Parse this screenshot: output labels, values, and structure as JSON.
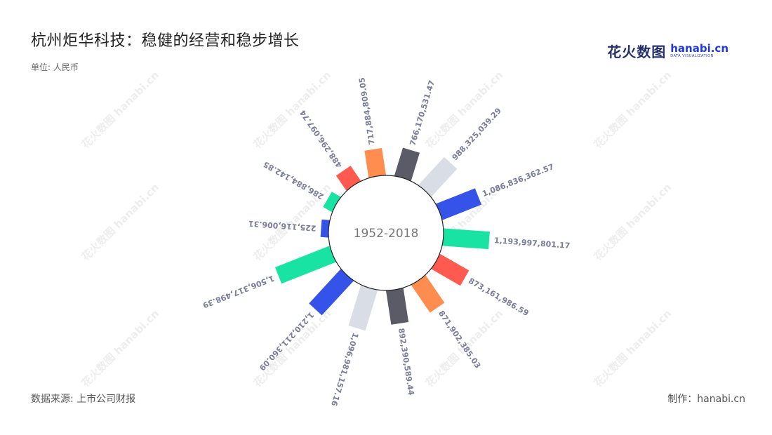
{
  "title": "杭州炬华科技：稳健的经营和稳步增长",
  "unit_label": "单位: 人民币",
  "source": "数据来源: 上市公司财报",
  "credit": "制作：hanabi.cn",
  "logo": {
    "cn": "花火数图",
    "en": "hanabi.cn",
    "sub": "DATA VISUALIZATION"
  },
  "watermark_text": "花火数图 hanabi.cn",
  "chart_data": {
    "type": "bar",
    "layout": "radial",
    "center_label": "1952-2018",
    "values": [
      766170531.47,
      988325039.29,
      1086836362.57,
      1193997801.17,
      873161986.59,
      871902385.03,
      892390589.44,
      1096981157.16,
      1210211360.09,
      1506317498.39,
      225116006.31,
      286884142.85,
      488296097.74,
      717884809.05
    ],
    "labels": [
      "766,170,531.47",
      "988,325,039.29",
      "1,086,836,362.57",
      "1,193,997,801.17",
      "873,161,986.59",
      "871,902,385.03",
      "892,390,589.44",
      "1,096,981,157.16",
      "1,210,211,360.09",
      "1,506,317,498.39",
      "225,116,006.31",
      "286,884,142.85",
      "488,296,097.74",
      "717,884,809.05"
    ],
    "colors": [
      "#5a5b66",
      "#d9dde6",
      "#3553e8",
      "#19e3a2",
      "#ff5a4f",
      "#ff8d4f",
      "#5a5b66",
      "#d9dde6",
      "#3553e8",
      "#19e3a2",
      "#3553e8",
      "#19e3a2",
      "#ff5a4f",
      "#ff8d4f"
    ],
    "label_color": "#7a7d99"
  }
}
